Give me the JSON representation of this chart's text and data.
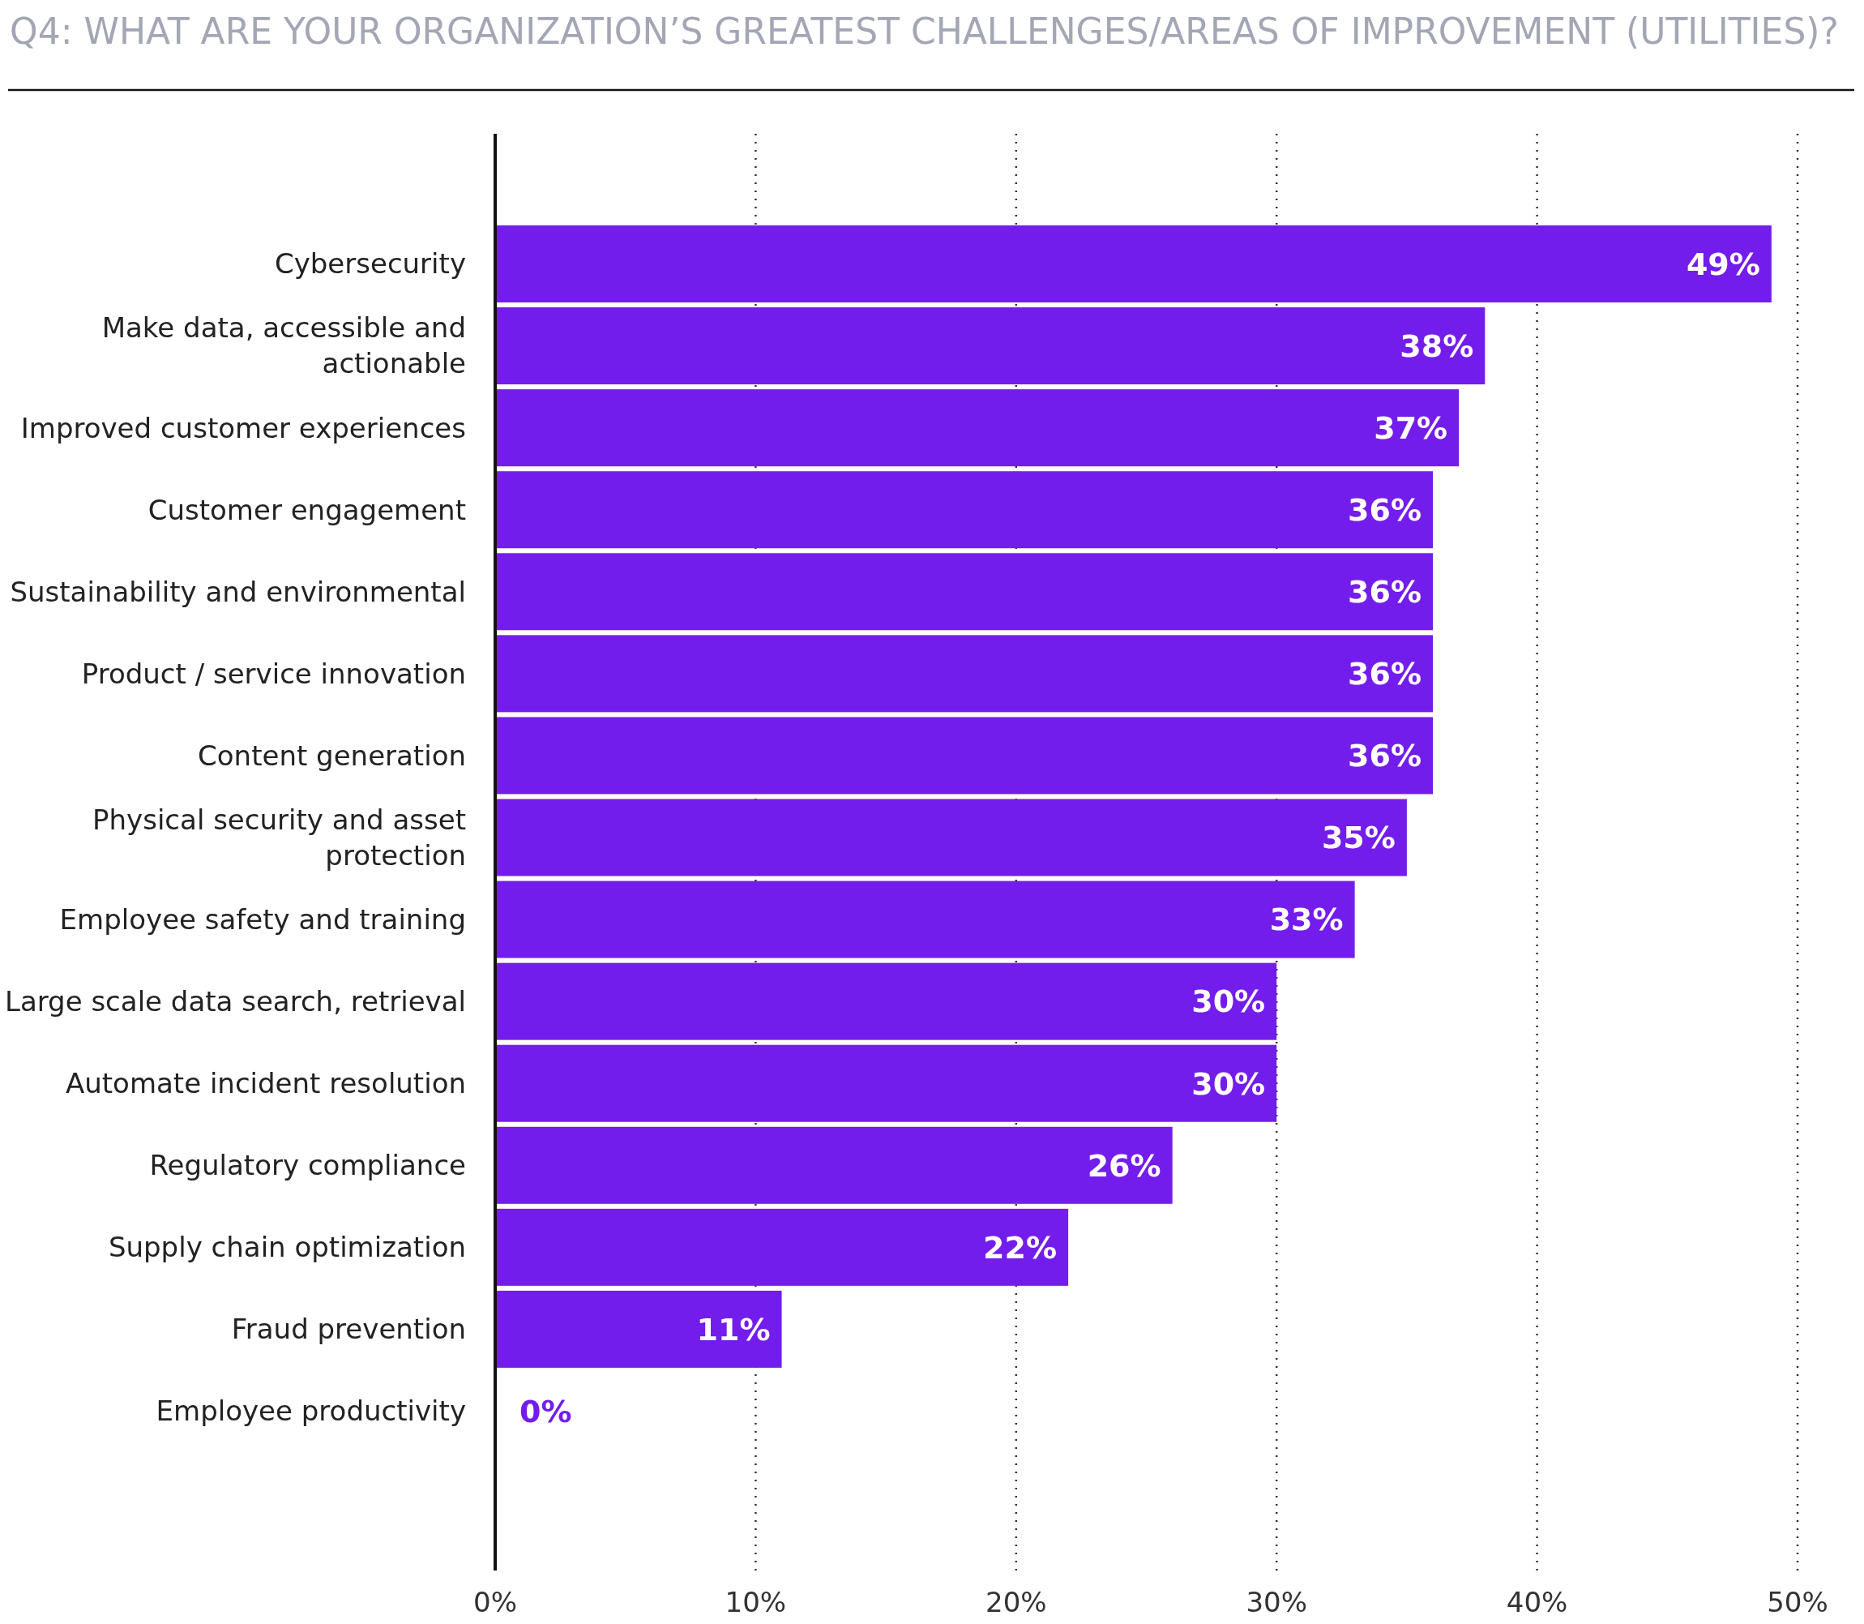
{
  "chart_data": {
    "type": "bar",
    "orientation": "horizontal",
    "title": "Q4: WHAT ARE YOUR ORGANIZATION’S GREATEST CHALLENGES/AREAS OF IMPROVEMENT (UTILITIES)?",
    "categories": [
      "Cybersecurity",
      "Make data, accessible and actionable",
      "Improved customer experiences",
      "Customer engagement",
      "Sustainability and environmental",
      "Product / service innovation",
      "Content generation",
      "Physical security and asset protection",
      "Employee safety and training",
      "Large scale data search, retrieval",
      "Automate incident resolution",
      "Regulatory compliance",
      "Supply chain optimization",
      "Fraud prevention",
      "Employee productivity"
    ],
    "values": [
      49,
      38,
      37,
      36,
      36,
      36,
      36,
      35,
      33,
      30,
      30,
      26,
      22,
      11,
      0
    ],
    "value_labels": [
      "49%",
      "38%",
      "37%",
      "36%",
      "36%",
      "36%",
      "36%",
      "35%",
      "33%",
      "30%",
      "30%",
      "26%",
      "22%",
      "11%",
      "0%"
    ],
    "color": "#731dec",
    "xlim": [
      0,
      50
    ],
    "xticks": [
      {
        "value": 0,
        "label": "0%"
      },
      {
        "value": 10,
        "label": "10%"
      },
      {
        "value": 20,
        "label": "20%"
      },
      {
        "value": 30,
        "label": "30%"
      },
      {
        "value": 40,
        "label": "40%"
      },
      {
        "value": 50,
        "label": "50%"
      }
    ],
    "grid": "x"
  }
}
